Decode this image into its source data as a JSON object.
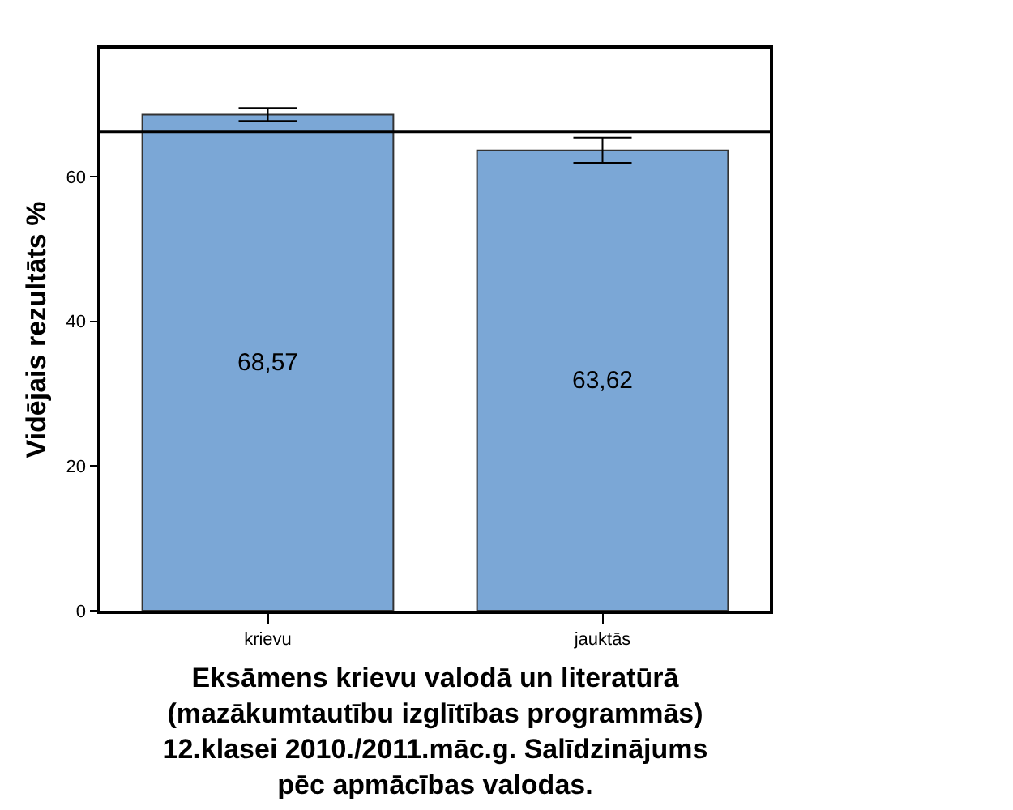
{
  "chart_data": {
    "type": "bar",
    "xlabel": "Eksāmens krievu valodā un literatūrā\n(mazākumtautību izglītības programmās)\n12.klasei 2010./2011.māc.g. Salīdzinājums\npēc apmācības valodas.",
    "ylabel": "Vidējais rezultāts %",
    "categories": [
      "krievu",
      "jauktās"
    ],
    "values": [
      68.57,
      63.62
    ],
    "value_labels": [
      "68,57",
      "63,62"
    ],
    "errors": [
      [
        67.7,
        69.5
      ],
      [
        61.9,
        65.4
      ]
    ],
    "color": "#7ba7d6",
    "ylim": [
      0,
      77.7
    ],
    "yticks": [
      0,
      20,
      40,
      60
    ],
    "ref_lines": [
      {
        "axis": "y",
        "value": 66.2,
        "color": "#000000"
      }
    ],
    "grid": false,
    "legend": false
  }
}
